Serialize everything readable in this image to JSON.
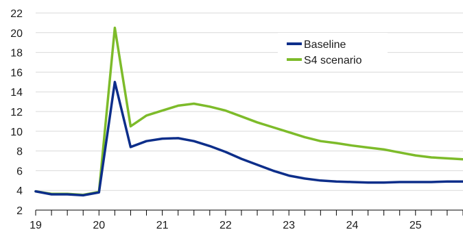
{
  "chart_data": {
    "type": "line",
    "title": "",
    "xlabel": "",
    "ylabel": "",
    "xlim": [
      19,
      25.75
    ],
    "ylim": [
      2,
      22
    ],
    "x_ticks": [
      19,
      20,
      21,
      22,
      23,
      24,
      25
    ],
    "x_tick_labels": [
      "19",
      "20",
      "21",
      "22",
      "23",
      "24",
      "25"
    ],
    "y_ticks": [
      2,
      4,
      6,
      8,
      10,
      12,
      14,
      16,
      18,
      20,
      22
    ],
    "y_tick_labels": [
      "2",
      "4",
      "6",
      "8",
      "10",
      "12",
      "14",
      "16",
      "18",
      "20",
      "22"
    ],
    "grid": {
      "horizontal": true,
      "vertical": false
    },
    "legend_position": "top-right",
    "x": [
      19.0,
      19.25,
      19.5,
      19.75,
      20.0,
      20.25,
      20.5,
      20.75,
      21.0,
      21.25,
      21.5,
      21.75,
      22.0,
      22.25,
      22.5,
      22.75,
      23.0,
      23.25,
      23.5,
      23.75,
      24.0,
      24.25,
      24.5,
      24.75,
      25.0,
      25.25,
      25.5,
      25.75
    ],
    "series": [
      {
        "name": "Baseline",
        "color": "#0d2e8a",
        "values": [
          3.9,
          3.6,
          3.6,
          3.5,
          3.8,
          15.0,
          8.4,
          9.0,
          9.25,
          9.3,
          9.0,
          8.5,
          7.9,
          7.2,
          6.6,
          6.0,
          5.5,
          5.2,
          5.0,
          4.9,
          4.85,
          4.8,
          4.8,
          4.85,
          4.85,
          4.85,
          4.9,
          4.9
        ]
      },
      {
        "name": "S4 scenario",
        "color": "#7dbb2a",
        "values": [
          3.9,
          3.65,
          3.65,
          3.55,
          3.85,
          20.5,
          10.5,
          11.6,
          12.1,
          12.6,
          12.8,
          12.5,
          12.1,
          11.5,
          10.9,
          10.4,
          9.9,
          9.4,
          9.0,
          8.8,
          8.55,
          8.35,
          8.15,
          7.85,
          7.55,
          7.35,
          7.25,
          7.15
        ]
      }
    ]
  }
}
